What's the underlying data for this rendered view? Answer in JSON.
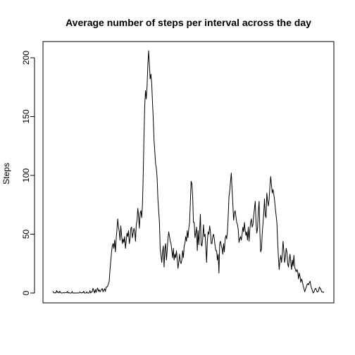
{
  "chart_data": {
    "type": "line",
    "title": "Average number of steps per interval across the day",
    "xlabel": "",
    "ylabel": "Steps",
    "x_ticks_shown": false,
    "ylim": [
      0,
      210
    ],
    "y_ticks": [
      0,
      50,
      100,
      150,
      200
    ],
    "grid": false,
    "legend": "none",
    "line_color": "#000000",
    "series": [
      {
        "values": [
          1.7,
          0.3,
          0.1,
          0.2,
          0.1,
          2.1,
          0.5,
          0.9,
          0.0,
          1.5,
          0.4,
          0.0,
          0.0,
          0.2,
          0.4,
          0.0,
          0.4,
          0.4,
          0.2,
          1.4,
          0.0,
          0.3,
          0.0,
          0.0,
          0.0,
          1.3,
          0.0,
          0.0,
          0.1,
          0.0,
          0.0,
          0.0,
          0.2,
          0.0,
          0.0,
          0.9,
          0.3,
          0.0,
          0.5,
          0.3,
          1.5,
          0.0,
          0.0,
          0.0,
          1.0,
          0.0,
          0.0,
          0.1,
          2.0,
          0.0,
          1.0,
          1.0,
          4.0,
          2.0,
          0.0,
          3.0,
          0.5,
          3.0,
          4.2,
          1.5,
          2.8,
          1.0,
          2.0,
          3.0,
          3.8,
          1.0,
          2.5,
          3.7,
          1.3,
          5.0,
          5.0,
          6.0,
          8.0,
          10.0,
          20.0,
          27.0,
          35.0,
          40.0,
          42.0,
          38.0,
          45.0,
          35.0,
          46.0,
          54.0,
          63.0,
          56.0,
          52.0,
          45.0,
          57.0,
          49.0,
          42.0,
          46.0,
          43.0,
          48.0,
          38.0,
          44.0,
          51.0,
          48.0,
          53.0,
          42.0,
          46.0,
          55.0,
          56.0,
          47.0,
          51.0,
          55.0,
          52.0,
          44.0,
          58.0,
          62.0,
          72.0,
          65.0,
          55.0,
          68.0,
          70.0,
          64.0,
          75.0,
          100.0,
          134.0,
          160.0,
          172.0,
          165.0,
          176.0,
          194.0,
          206.0,
          194.0,
          182.0,
          186.0,
          178.0,
          162.0,
          148.0,
          130.0,
          120.0,
          110.0,
          106.0,
          98.0,
          80.0,
          70.0,
          60.0,
          37.0,
          32.0,
          26.0,
          35.0,
          40.0,
          22.0,
          37.0,
          42.0,
          28.0,
          36.0,
          46.0,
          52.0,
          48.0,
          44.0,
          42.0,
          36.0,
          30.0,
          38.0,
          28.0,
          33.0,
          30.0,
          36.0,
          29.0,
          21.0,
          26.0,
          33.0,
          27.0,
          25.0,
          28.0,
          36.0,
          30.0,
          40.0,
          42.0,
          48.0,
          44.0,
          53.0,
          47.0,
          55.0,
          60.0,
          77.0,
          95.0,
          93.0,
          82.0,
          60.0,
          60.0,
          47.0,
          51.0,
          56.0,
          36.0,
          53.0,
          41.0,
          53.0,
          67.0,
          41.0,
          40.0,
          46.0,
          58.0,
          48.0,
          50.0,
          40.0,
          26.0,
          44.0,
          52.0,
          50.0,
          57.0,
          52.0,
          42.0,
          42.0,
          48.0,
          50.0,
          46.0,
          40.0,
          36.0,
          36.0,
          28.0,
          33.0,
          17.0,
          42.0,
          44.0,
          40.0,
          38.0,
          33.0,
          42.0,
          35.0,
          46.0,
          49.0,
          46.0,
          52.0,
          65.0,
          82.0,
          87.0,
          95.0,
          102.0,
          88.0,
          76.0,
          62.0,
          68.0,
          70.0,
          65.0,
          60.0,
          58.0,
          54.0,
          43.0,
          46.0,
          48.0,
          45.0,
          50.0,
          56.0,
          52.0,
          60.0,
          53.0,
          49.0,
          52.0,
          45.0,
          56.0,
          44.0,
          54.0,
          60.0,
          63.0,
          56.0,
          58.0,
          66.0,
          72.0,
          78.0,
          60.0,
          51.0,
          55.0,
          70.0,
          78.0,
          52.0,
          35.0,
          37.0,
          50.0,
          59.0,
          68.0,
          80.0,
          66.0,
          64.0,
          85.0,
          78.0,
          74.0,
          80.0,
          91.0,
          99.0,
          92.0,
          85.0,
          88.0,
          84.0,
          79.0,
          72.0,
          66.0,
          60.0,
          44.0,
          30.0,
          20.0,
          28.0,
          32.0,
          26.0,
          33.0,
          44.0,
          36.0,
          26.0,
          30.0,
          38.0,
          35.0,
          25.0,
          22.0,
          28.0,
          33.0,
          26.0,
          20.0,
          28.0,
          23.0,
          32.0,
          22.0,
          20.0,
          18.0,
          20.0,
          18.0,
          12.0,
          17.0,
          14.0,
          9.0,
          12.0,
          10.0,
          6.0,
          4.0,
          1.0,
          3.0,
          5.0,
          7.0,
          8.0,
          7.0,
          9.0,
          10.0,
          6.0,
          4.0,
          2.0,
          0.0,
          1.0,
          3.0,
          4.0,
          3.0,
          1.0,
          1.0,
          2.0,
          5.0,
          4.0,
          3.0,
          1.0,
          1.0,
          0.5,
          1.0
        ]
      }
    ]
  }
}
